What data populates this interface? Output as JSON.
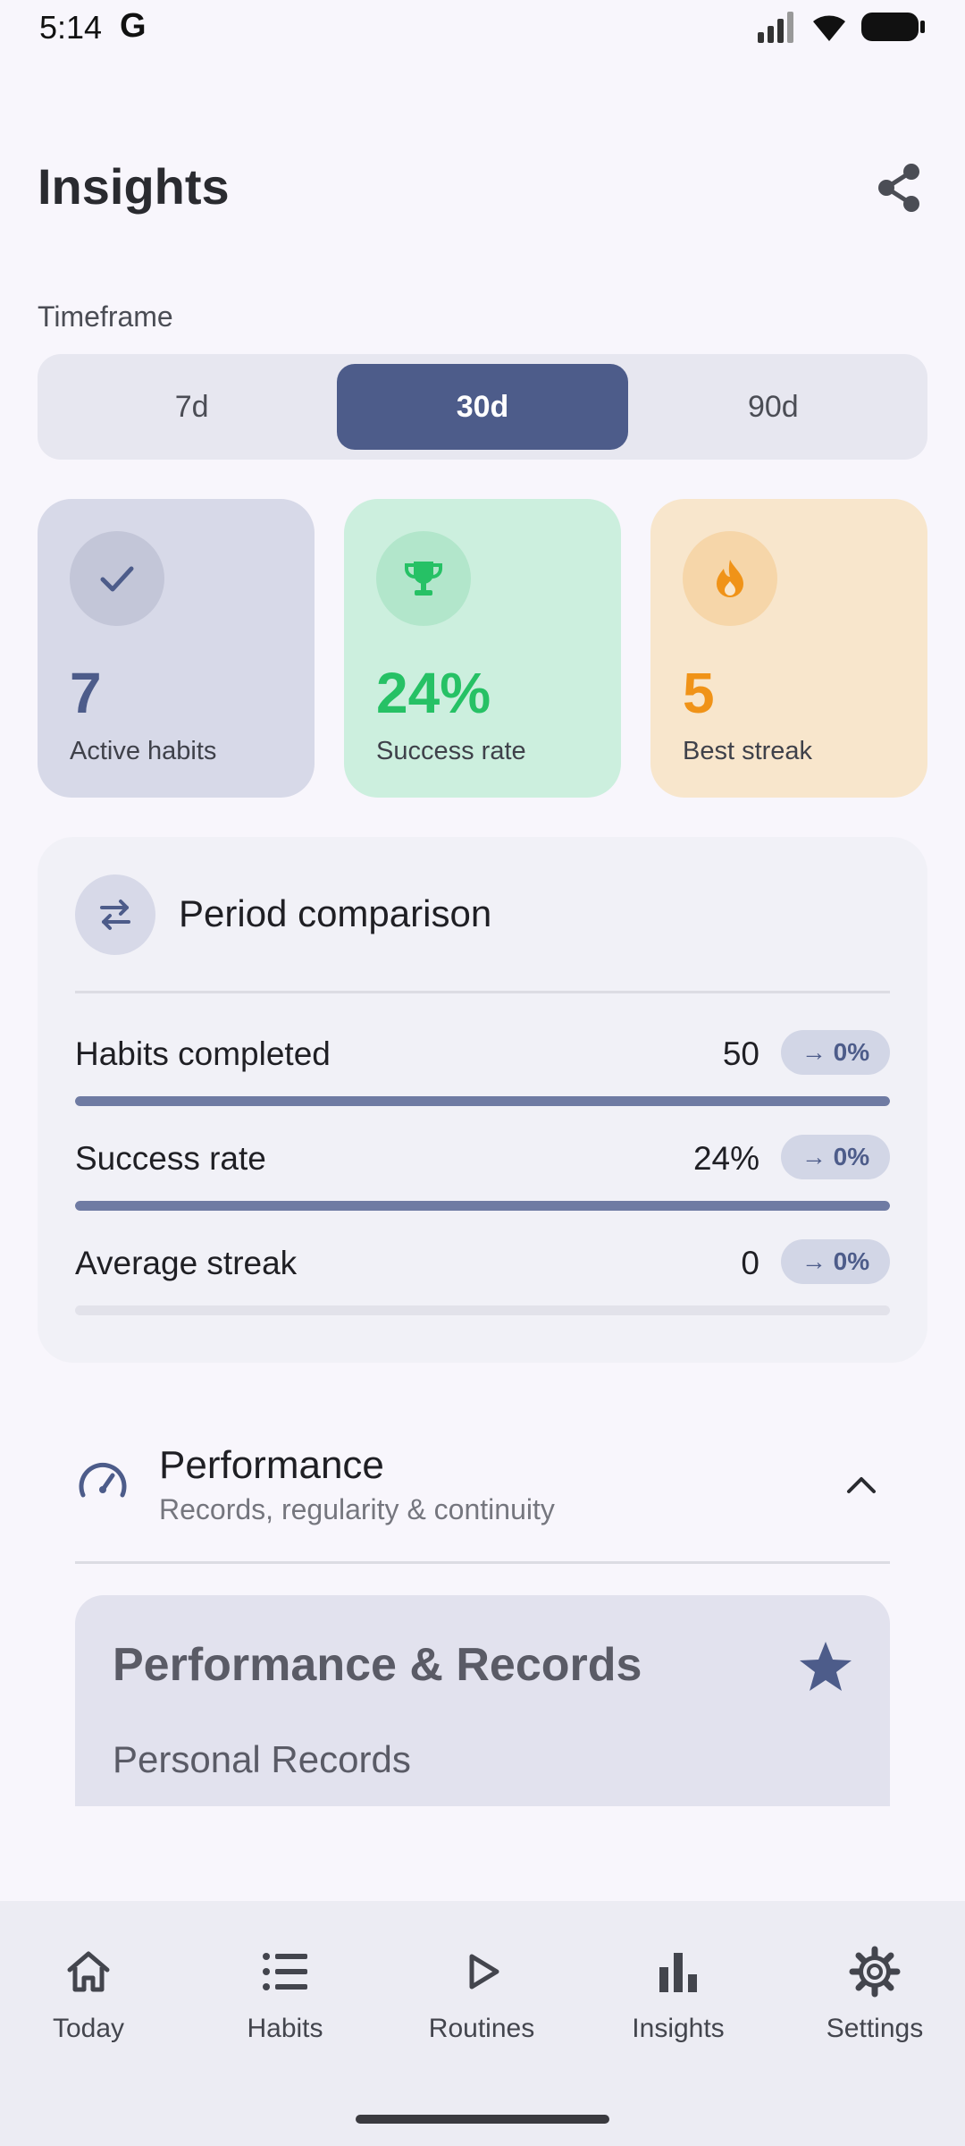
{
  "status_bar": {
    "time": "5:14",
    "g_logo": "G"
  },
  "header": {
    "title": "Insights",
    "share_icon": "share-icon"
  },
  "timeframe": {
    "label": "Timeframe",
    "options": [
      "7d",
      "30d",
      "90d"
    ],
    "selected": "30d"
  },
  "stats": {
    "active": {
      "value": "7",
      "label": "Active habits",
      "icon": "check-icon"
    },
    "success": {
      "value": "24%",
      "label": "Success rate",
      "icon": "trophy-icon"
    },
    "streak": {
      "value": "5",
      "label": "Best streak",
      "icon": "flame-icon"
    }
  },
  "period_comparison": {
    "title": "Period comparison",
    "metrics": [
      {
        "label": "Habits completed",
        "value": "50",
        "change": "→ 0%",
        "fill_percent": 100
      },
      {
        "label": "Success rate",
        "value": "24%",
        "change": "→ 0%",
        "fill_percent": 100
      },
      {
        "label": "Average streak",
        "value": "0",
        "change": "→ 0%",
        "fill_percent": 0
      }
    ]
  },
  "performance": {
    "title": "Performance",
    "subtitle": "Records, regularity & continuity",
    "records_title": "Performance & Records",
    "records_subtitle": "Personal Records"
  },
  "nav": {
    "items": [
      "Today",
      "Habits",
      "Routines",
      "Insights",
      "Settings"
    ]
  },
  "colors": {
    "primary": "#4d5c8a",
    "success": "#26c165",
    "streak": "#f09318"
  }
}
